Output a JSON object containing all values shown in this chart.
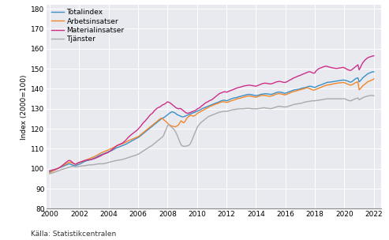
{
  "title": "",
  "ylabel": "Index (2000=100)",
  "source": "Källa: Statistikcentralen",
  "ylim": [
    80,
    182
  ],
  "yticks": [
    80,
    90,
    100,
    110,
    120,
    130,
    140,
    150,
    160,
    170,
    180
  ],
  "xlim": [
    1999.8,
    2022.5
  ],
  "xticks": [
    2000,
    2002,
    2004,
    2006,
    2008,
    2010,
    2012,
    2014,
    2016,
    2018,
    2020,
    2022
  ],
  "legend": [
    "Totalindex",
    "Arbetsinsatser",
    "Materialinsatser",
    "Tjänster"
  ],
  "colors": [
    "#3b8fc4",
    "#f0872b",
    "#cc2e88",
    "#aaaaaa"
  ],
  "plot_bg": "#e8eaf0",
  "fig_bg": "#ffffff",
  "grid_color": "#ffffff",
  "line_width": 1.0,
  "years": [
    2000.0,
    2000.08,
    2000.17,
    2000.25,
    2000.33,
    2000.42,
    2000.5,
    2000.58,
    2000.67,
    2000.75,
    2000.83,
    2000.92,
    2001.0,
    2001.08,
    2001.17,
    2001.25,
    2001.33,
    2001.42,
    2001.5,
    2001.58,
    2001.67,
    2001.75,
    2001.83,
    2001.92,
    2002.0,
    2002.08,
    2002.17,
    2002.25,
    2002.33,
    2002.42,
    2002.5,
    2002.58,
    2002.67,
    2002.75,
    2002.83,
    2002.92,
    2003.0,
    2003.08,
    2003.17,
    2003.25,
    2003.33,
    2003.42,
    2003.5,
    2003.58,
    2003.67,
    2003.75,
    2003.83,
    2003.92,
    2004.0,
    2004.08,
    2004.17,
    2004.25,
    2004.33,
    2004.42,
    2004.5,
    2004.58,
    2004.67,
    2004.75,
    2004.83,
    2004.92,
    2005.0,
    2005.08,
    2005.17,
    2005.25,
    2005.33,
    2005.42,
    2005.5,
    2005.58,
    2005.67,
    2005.75,
    2005.83,
    2005.92,
    2006.0,
    2006.08,
    2006.17,
    2006.25,
    2006.33,
    2006.42,
    2006.5,
    2006.58,
    2006.67,
    2006.75,
    2006.83,
    2006.92,
    2007.0,
    2007.08,
    2007.17,
    2007.25,
    2007.33,
    2007.42,
    2007.5,
    2007.58,
    2007.67,
    2007.75,
    2007.83,
    2007.92,
    2008.0,
    2008.08,
    2008.17,
    2008.25,
    2008.33,
    2008.42,
    2008.5,
    2008.58,
    2008.67,
    2008.75,
    2008.83,
    2008.92,
    2009.0,
    2009.08,
    2009.17,
    2009.25,
    2009.33,
    2009.42,
    2009.5,
    2009.58,
    2009.67,
    2009.75,
    2009.83,
    2009.92,
    2010.0,
    2010.08,
    2010.17,
    2010.25,
    2010.33,
    2010.42,
    2010.5,
    2010.58,
    2010.67,
    2010.75,
    2010.83,
    2010.92,
    2011.0,
    2011.08,
    2011.17,
    2011.25,
    2011.33,
    2011.42,
    2011.5,
    2011.58,
    2011.67,
    2011.75,
    2011.83,
    2011.92,
    2012.0,
    2012.08,
    2012.17,
    2012.25,
    2012.33,
    2012.42,
    2012.5,
    2012.58,
    2012.67,
    2012.75,
    2012.83,
    2012.92,
    2013.0,
    2013.08,
    2013.17,
    2013.25,
    2013.33,
    2013.42,
    2013.5,
    2013.58,
    2013.67,
    2013.75,
    2013.83,
    2013.92,
    2014.0,
    2014.08,
    2014.17,
    2014.25,
    2014.33,
    2014.42,
    2014.5,
    2014.58,
    2014.67,
    2014.75,
    2014.83,
    2014.92,
    2015.0,
    2015.08,
    2015.17,
    2015.25,
    2015.33,
    2015.42,
    2015.5,
    2015.58,
    2015.67,
    2015.75,
    2015.83,
    2015.92,
    2016.0,
    2016.08,
    2016.17,
    2016.25,
    2016.33,
    2016.42,
    2016.5,
    2016.58,
    2016.67,
    2016.75,
    2016.83,
    2016.92,
    2017.0,
    2017.08,
    2017.17,
    2017.25,
    2017.33,
    2017.42,
    2017.5,
    2017.58,
    2017.67,
    2017.75,
    2017.83,
    2017.92,
    2018.0,
    2018.08,
    2018.17,
    2018.25,
    2018.33,
    2018.42,
    2018.5,
    2018.58,
    2018.67,
    2018.75,
    2018.83,
    2018.92,
    2019.0,
    2019.08,
    2019.17,
    2019.25,
    2019.33,
    2019.42,
    2019.5,
    2019.58,
    2019.67,
    2019.75,
    2019.83,
    2019.92,
    2020.0,
    2020.08,
    2020.17,
    2020.25,
    2020.33,
    2020.42,
    2020.5,
    2020.58,
    2020.67,
    2020.75,
    2020.83,
    2020.92,
    2021.0,
    2021.08,
    2021.17,
    2021.25,
    2021.33,
    2021.42,
    2021.5,
    2021.58,
    2021.67,
    2021.75,
    2021.83,
    2021.92,
    2022.0
  ],
  "totalindex": [
    98.5,
    98.7,
    99.0,
    99.3,
    99.6,
    99.8,
    100.0,
    100.3,
    100.6,
    100.8,
    101.0,
    101.2,
    101.5,
    101.8,
    102.0,
    102.3,
    102.5,
    102.3,
    102.0,
    101.8,
    101.6,
    101.5,
    101.8,
    102.0,
    102.2,
    102.5,
    102.8,
    103.2,
    103.5,
    103.8,
    104.0,
    104.2,
    104.3,
    104.5,
    104.8,
    105.0,
    105.3,
    105.5,
    105.8,
    106.2,
    106.5,
    106.8,
    107.0,
    107.3,
    107.5,
    107.8,
    108.0,
    108.3,
    108.5,
    108.8,
    109.0,
    109.3,
    109.6,
    110.0,
    110.3,
    110.6,
    110.8,
    111.0,
    111.3,
    111.5,
    111.8,
    112.0,
    112.3,
    112.6,
    113.0,
    113.3,
    113.6,
    114.0,
    114.3,
    114.6,
    115.0,
    115.3,
    115.6,
    116.0,
    116.5,
    117.0,
    117.5,
    118.0,
    118.5,
    119.0,
    119.5,
    120.0,
    120.5,
    121.0,
    121.5,
    122.0,
    122.5,
    123.0,
    123.5,
    124.0,
    124.5,
    125.0,
    125.3,
    125.6,
    126.0,
    126.5,
    127.0,
    127.5,
    128.0,
    128.3,
    128.5,
    128.2,
    128.0,
    127.5,
    127.0,
    126.8,
    126.5,
    126.2,
    126.0,
    126.0,
    126.2,
    126.5,
    126.8,
    127.0,
    127.2,
    127.5,
    127.8,
    128.0,
    128.2,
    128.5,
    128.8,
    129.0,
    129.3,
    129.6,
    130.0,
    130.3,
    130.6,
    130.8,
    131.0,
    131.3,
    131.5,
    131.8,
    132.0,
    132.3,
    132.5,
    132.8,
    133.0,
    133.2,
    133.5,
    133.8,
    134.0,
    134.2,
    134.3,
    134.2,
    134.0,
    134.2,
    134.5,
    134.8,
    135.0,
    135.2,
    135.4,
    135.5,
    135.6,
    135.8,
    136.0,
    136.2,
    136.3,
    136.5,
    136.7,
    136.8,
    137.0,
    137.1,
    137.2,
    137.2,
    137.1,
    137.0,
    136.8,
    136.7,
    136.6,
    136.7,
    136.8,
    137.0,
    137.2,
    137.3,
    137.4,
    137.5,
    137.5,
    137.5,
    137.4,
    137.3,
    137.2,
    137.3,
    137.5,
    137.7,
    138.0,
    138.2,
    138.3,
    138.4,
    138.3,
    138.2,
    138.0,
    137.8,
    137.8,
    138.0,
    138.3,
    138.5,
    138.7,
    139.0,
    139.2,
    139.4,
    139.5,
    139.6,
    139.7,
    139.8,
    140.0,
    140.2,
    140.4,
    140.5,
    140.6,
    140.8,
    141.0,
    141.2,
    141.3,
    141.2,
    141.0,
    140.8,
    140.7,
    141.0,
    141.3,
    141.6,
    141.8,
    142.0,
    142.2,
    142.5,
    142.7,
    143.0,
    143.2,
    143.3,
    143.3,
    143.4,
    143.5,
    143.6,
    143.7,
    143.8,
    143.9,
    144.0,
    144.1,
    144.2,
    144.3,
    144.4,
    144.3,
    144.2,
    144.0,
    143.8,
    143.5,
    143.3,
    143.5,
    144.0,
    144.5,
    145.0,
    145.3,
    145.5,
    143.5,
    144.0,
    144.8,
    145.5,
    146.0,
    146.5,
    147.0,
    147.5,
    147.8,
    148.0,
    148.3,
    148.5,
    148.5
  ],
  "arbetsinsatser": [
    98.0,
    98.3,
    98.7,
    99.0,
    99.3,
    99.6,
    100.0,
    100.3,
    100.6,
    101.0,
    101.3,
    101.6,
    102.0,
    102.3,
    102.6,
    103.0,
    103.3,
    103.2,
    103.0,
    102.8,
    102.5,
    102.3,
    102.5,
    102.8,
    103.0,
    103.3,
    103.5,
    103.8,
    104.0,
    104.3,
    104.5,
    104.7,
    105.0,
    105.3,
    105.5,
    105.8,
    106.0,
    106.3,
    106.6,
    107.0,
    107.3,
    107.6,
    108.0,
    108.2,
    108.5,
    108.7,
    109.0,
    109.2,
    109.5,
    109.8,
    110.0,
    110.3,
    110.6,
    111.0,
    111.3,
    111.5,
    111.8,
    112.0,
    112.2,
    112.5,
    112.8,
    113.0,
    113.3,
    113.6,
    114.0,
    114.3,
    114.5,
    114.8,
    115.0,
    115.3,
    115.5,
    115.8,
    116.0,
    116.5,
    117.0,
    117.5,
    118.0,
    118.5,
    119.0,
    119.5,
    120.0,
    120.5,
    121.0,
    121.5,
    122.0,
    122.5,
    123.0,
    123.5,
    124.0,
    124.5,
    125.0,
    125.3,
    125.0,
    124.5,
    124.0,
    123.5,
    122.8,
    122.3,
    121.8,
    121.5,
    121.3,
    121.2,
    121.0,
    121.2,
    121.5,
    122.0,
    123.0,
    124.0,
    123.5,
    123.0,
    123.5,
    124.5,
    125.5,
    126.0,
    126.5,
    126.8,
    126.5,
    126.3,
    126.5,
    127.0,
    127.5,
    128.0,
    128.3,
    128.6,
    129.0,
    129.3,
    129.6,
    130.0,
    130.3,
    130.6,
    131.0,
    131.3,
    131.5,
    131.8,
    132.0,
    132.3,
    132.5,
    132.7,
    133.0,
    133.2,
    133.4,
    133.5,
    133.5,
    133.4,
    133.2,
    133.3,
    133.5,
    133.8,
    134.0,
    134.2,
    134.4,
    134.6,
    134.8,
    135.0,
    135.2,
    135.3,
    135.5,
    135.7,
    135.8,
    136.0,
    136.2,
    136.3,
    136.4,
    136.4,
    136.3,
    136.2,
    136.0,
    135.9,
    135.8,
    136.0,
    136.2,
    136.4,
    136.6,
    136.7,
    136.7,
    136.7,
    136.6,
    136.5,
    136.4,
    136.3,
    136.3,
    136.5,
    136.7,
    136.9,
    137.2,
    137.4,
    137.5,
    137.6,
    137.5,
    137.4,
    137.2,
    137.0,
    137.0,
    137.2,
    137.5,
    137.8,
    138.0,
    138.3,
    138.5,
    138.7,
    138.8,
    139.0,
    139.2,
    139.4,
    139.5,
    139.7,
    139.9,
    140.0,
    140.2,
    140.4,
    140.5,
    140.3,
    140.0,
    139.8,
    139.5,
    139.3,
    139.5,
    139.8,
    140.0,
    140.3,
    140.5,
    140.8,
    141.0,
    141.3,
    141.5,
    141.7,
    141.9,
    142.0,
    142.0,
    142.2,
    142.3,
    142.5,
    142.6,
    142.7,
    142.8,
    142.9,
    143.0,
    143.0,
    143.1,
    143.2,
    143.0,
    142.8,
    142.5,
    142.2,
    142.0,
    141.8,
    142.0,
    142.3,
    142.7,
    143.0,
    143.3,
    143.5,
    139.5,
    140.0,
    140.8,
    141.5,
    142.0,
    142.5,
    143.0,
    143.5,
    143.8,
    144.0,
    144.3,
    144.5,
    145.0
  ],
  "materialinsatser": [
    99.0,
    99.2,
    99.4,
    99.5,
    99.6,
    99.8,
    100.0,
    100.3,
    100.6,
    101.0,
    101.5,
    102.0,
    102.5,
    103.0,
    103.5,
    104.0,
    104.2,
    104.0,
    103.5,
    103.0,
    102.5,
    102.3,
    102.5,
    103.0,
    103.2,
    103.4,
    103.6,
    103.8,
    104.0,
    104.2,
    104.4,
    104.5,
    104.5,
    104.5,
    104.6,
    104.8,
    105.0,
    105.2,
    105.5,
    105.8,
    106.0,
    106.3,
    106.6,
    107.0,
    107.3,
    107.5,
    107.8,
    108.0,
    108.3,
    108.7,
    109.2,
    109.7,
    110.2,
    110.7,
    111.2,
    111.7,
    112.0,
    112.3,
    112.5,
    112.8,
    113.2,
    113.7,
    114.3,
    115.0,
    115.7,
    116.3,
    116.8,
    117.3,
    117.8,
    118.3,
    118.7,
    119.2,
    119.8,
    120.5,
    121.2,
    122.0,
    122.8,
    123.5,
    124.0,
    124.8,
    125.5,
    126.3,
    127.0,
    127.5,
    128.0,
    128.8,
    129.5,
    130.0,
    130.5,
    130.8,
    131.0,
    131.5,
    132.0,
    132.2,
    132.5,
    133.0,
    133.5,
    133.3,
    133.0,
    132.5,
    132.0,
    131.5,
    131.0,
    130.5,
    130.2,
    130.0,
    130.2,
    130.0,
    129.5,
    129.0,
    128.5,
    128.0,
    127.8,
    127.8,
    128.0,
    128.3,
    128.5,
    128.8,
    129.0,
    129.3,
    129.8,
    130.2,
    130.5,
    131.0,
    131.5,
    132.0,
    132.5,
    133.0,
    133.3,
    133.6,
    134.0,
    134.3,
    134.5,
    135.0,
    135.5,
    136.0,
    136.5,
    137.0,
    137.5,
    137.8,
    138.0,
    138.3,
    138.5,
    138.5,
    138.3,
    138.5,
    138.8,
    139.0,
    139.3,
    139.5,
    139.8,
    140.0,
    140.3,
    140.5,
    140.7,
    140.8,
    141.0,
    141.2,
    141.4,
    141.5,
    141.6,
    141.7,
    141.8,
    141.8,
    141.7,
    141.6,
    141.5,
    141.4,
    141.3,
    141.5,
    141.8,
    142.0,
    142.3,
    142.5,
    142.7,
    142.8,
    142.8,
    142.7,
    142.6,
    142.5,
    142.4,
    142.6,
    142.8,
    143.0,
    143.3,
    143.5,
    143.6,
    143.7,
    143.6,
    143.5,
    143.3,
    143.2,
    143.2,
    143.5,
    143.8,
    144.2,
    144.5,
    144.8,
    145.2,
    145.5,
    145.7,
    146.0,
    146.3,
    146.5,
    146.7,
    147.0,
    147.3,
    147.5,
    147.8,
    148.0,
    148.3,
    148.5,
    148.5,
    148.3,
    148.0,
    147.8,
    148.0,
    149.0,
    149.5,
    150.0,
    150.3,
    150.5,
    150.8,
    151.0,
    151.2,
    151.3,
    151.2,
    151.0,
    150.8,
    150.7,
    150.5,
    150.4,
    150.3,
    150.2,
    150.2,
    150.3,
    150.4,
    150.5,
    150.6,
    150.7,
    150.5,
    150.2,
    149.8,
    149.5,
    149.3,
    149.2,
    149.5,
    150.0,
    150.5,
    151.0,
    151.5,
    152.0,
    149.5,
    150.5,
    152.0,
    153.0,
    153.8,
    154.5,
    155.0,
    155.5,
    155.8,
    156.0,
    156.2,
    156.4,
    156.5
  ],
  "tjanster": [
    97.5,
    97.7,
    97.9,
    98.1,
    98.3,
    98.5,
    98.8,
    99.0,
    99.2,
    99.5,
    99.7,
    99.9,
    100.0,
    100.2,
    100.4,
    100.6,
    100.8,
    101.0,
    101.1,
    101.2,
    101.1,
    101.0,
    101.0,
    101.1,
    101.2,
    101.3,
    101.4,
    101.5,
    101.5,
    101.6,
    101.7,
    101.8,
    101.9,
    102.0,
    102.0,
    102.0,
    102.1,
    102.2,
    102.3,
    102.4,
    102.5,
    102.5,
    102.5,
    102.5,
    102.6,
    102.7,
    102.8,
    103.0,
    103.2,
    103.4,
    103.5,
    103.7,
    103.8,
    104.0,
    104.1,
    104.2,
    104.3,
    104.4,
    104.5,
    104.6,
    104.8,
    105.0,
    105.2,
    105.4,
    105.6,
    105.8,
    106.0,
    106.2,
    106.4,
    106.6,
    106.8,
    107.0,
    107.3,
    107.6,
    108.0,
    108.4,
    108.8,
    109.2,
    109.6,
    110.0,
    110.4,
    110.8,
    111.2,
    111.5,
    112.0,
    112.5,
    113.0,
    113.5,
    114.0,
    114.5,
    115.0,
    115.5,
    116.0,
    117.0,
    118.5,
    120.0,
    121.5,
    122.0,
    121.5,
    121.0,
    120.5,
    119.8,
    119.0,
    118.0,
    116.5,
    115.0,
    113.5,
    112.0,
    111.5,
    111.3,
    111.2,
    111.3,
    111.5,
    111.7,
    112.0,
    113.0,
    114.5,
    116.0,
    117.5,
    119.0,
    120.5,
    121.5,
    122.3,
    123.0,
    123.5,
    124.0,
    124.5,
    125.0,
    125.5,
    126.0,
    126.3,
    126.5,
    126.8,
    127.0,
    127.3,
    127.5,
    127.8,
    128.0,
    128.2,
    128.4,
    128.5,
    128.6,
    128.7,
    128.7,
    128.7,
    128.8,
    129.0,
    129.2,
    129.4,
    129.5,
    129.6,
    129.7,
    129.8,
    129.9,
    130.0,
    130.0,
    130.0,
    130.0,
    130.1,
    130.1,
    130.2,
    130.2,
    130.2,
    130.2,
    130.1,
    130.0,
    130.0,
    130.0,
    130.0,
    130.0,
    130.1,
    130.2,
    130.3,
    130.4,
    130.5,
    130.5,
    130.4,
    130.3,
    130.2,
    130.1,
    130.1,
    130.2,
    130.4,
    130.6,
    130.8,
    131.0,
    131.2,
    131.3,
    131.2,
    131.1,
    131.0,
    130.9,
    130.9,
    131.0,
    131.2,
    131.4,
    131.6,
    131.8,
    132.0,
    132.2,
    132.3,
    132.4,
    132.5,
    132.6,
    132.7,
    132.8,
    133.0,
    133.2,
    133.4,
    133.5,
    133.6,
    133.7,
    133.8,
    133.9,
    134.0,
    134.0,
    134.0,
    134.1,
    134.2,
    134.3,
    134.4,
    134.5,
    134.6,
    134.7,
    134.8,
    134.9,
    135.0,
    135.0,
    135.0,
    135.0,
    135.0,
    135.0,
    135.0,
    135.0,
    135.0,
    135.0,
    135.0,
    135.0,
    135.0,
    135.0,
    135.0,
    134.8,
    134.5,
    134.3,
    134.0,
    134.0,
    134.2,
    134.5,
    134.8,
    135.0,
    135.2,
    135.4,
    134.5,
    134.8,
    135.2,
    135.5,
    135.8,
    136.0,
    136.2,
    136.4,
    136.5,
    136.6,
    136.7,
    136.7,
    136.5
  ]
}
